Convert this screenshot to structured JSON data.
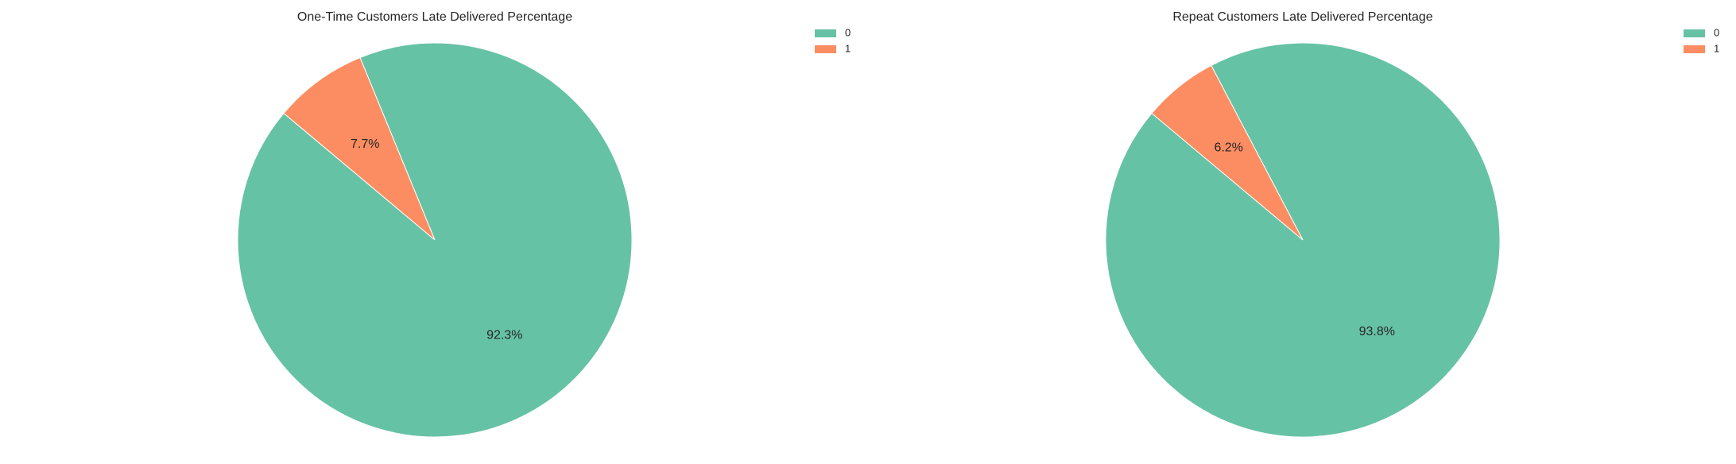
{
  "chart_data": [
    {
      "type": "pie",
      "title": "One-Time Customers Late Delivered Percentage",
      "labels": [
        "0",
        "1"
      ],
      "values": [
        92.3,
        7.7
      ],
      "pct_labels": [
        "92.3%",
        "7.7%"
      ],
      "colors": [
        "#66c2a5",
        "#fc8d62"
      ],
      "start_angle_deg": 140,
      "legend_position": "top-right"
    },
    {
      "type": "pie",
      "title": "Repeat Customers Late Delivered Percentage",
      "labels": [
        "0",
        "1"
      ],
      "values": [
        93.8,
        6.2
      ],
      "pct_labels": [
        "93.8%",
        "6.2%"
      ],
      "colors": [
        "#66c2a5",
        "#fc8d62"
      ],
      "start_angle_deg": 140,
      "legend_position": "top-right"
    }
  ]
}
